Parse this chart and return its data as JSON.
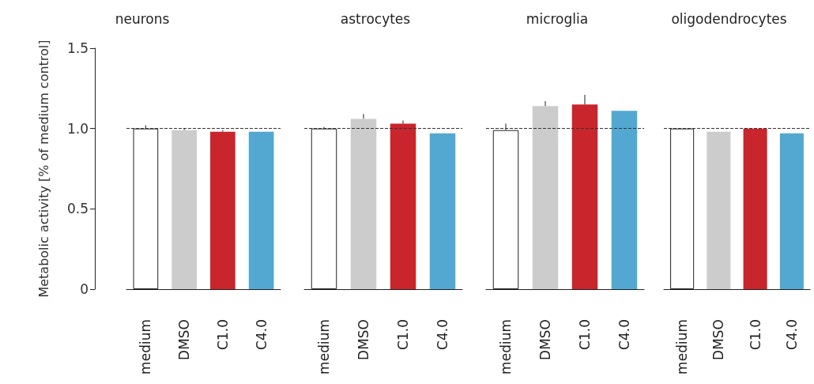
{
  "chart_data": [
    {
      "type": "bar",
      "title": "neurons",
      "ylabel": "Metabolic activity [% of medium control]",
      "categories": [
        "medium",
        "DMSO",
        "C1.0",
        "C4.0"
      ],
      "values": [
        1.0,
        0.99,
        0.98,
        0.98
      ],
      "colors": [
        "#ffffff",
        "#cccccc",
        "#c9252d",
        "#52a8d0"
      ],
      "errors": [
        [
          1.0,
          1.02
        ],
        [
          0.99,
          1.0
        ],
        [
          0.98,
          0.99
        ],
        null
      ],
      "ylim": [
        0,
        1.5
      ],
      "yticks": [
        0,
        {
          "value": 0.5,
          "label": "0.5"
        },
        {
          "value": 1,
          "label": "1.0"
        },
        1.5
      ],
      "ref_lines": [
        {
          "axis": "y",
          "value": 1,
          "label": null,
          "color": "#333333",
          "line_style": "dashed"
        }
      ],
      "grid": false
    },
    {
      "type": "bar",
      "title": "astrocytes",
      "categories": [
        "medium",
        "DMSO",
        "C1.0",
        "C4.0"
      ],
      "values": [
        1.0,
        1.06,
        1.03,
        0.97
      ],
      "colors": [
        "#ffffff",
        "#cccccc",
        "#c9252d",
        "#52a8d0"
      ],
      "errors": [
        [
          1.0,
          1.01
        ],
        [
          1.06,
          1.09
        ],
        [
          1.03,
          1.05
        ],
        null
      ],
      "ylim": [
        0,
        1.5
      ],
      "tick_labels": "x",
      "ref_lines": [
        {
          "axis": "y",
          "value": 1,
          "label": null,
          "color": "#333333",
          "line_style": "dashed"
        }
      ],
      "grid": false
    },
    {
      "type": "bar",
      "title": "microglia",
      "categories": [
        "medium",
        "DMSO",
        "C1.0",
        "C4.0"
      ],
      "values": [
        0.99,
        1.14,
        1.15,
        1.11
      ],
      "colors": [
        "#ffffff",
        "#cccccc",
        "#c9252d",
        "#52a8d0"
      ],
      "errors": [
        [
          0.99,
          1.03
        ],
        [
          1.14,
          1.17
        ],
        [
          1.15,
          1.21
        ],
        null
      ],
      "ylim": [
        0,
        1.5
      ],
      "tick_labels": "x",
      "ref_lines": [
        {
          "axis": "y",
          "value": 1,
          "label": null,
          "color": "#333333",
          "line_style": "dashed"
        }
      ],
      "grid": false
    },
    {
      "type": "bar",
      "title": "oligodendrocytes",
      "categories": [
        "medium",
        "DMSO",
        "C1.0",
        "C4.0"
      ],
      "values": [
        1.0,
        0.98,
        1.0,
        0.97
      ],
      "colors": [
        "#ffffff",
        "#cccccc",
        "#c9252d",
        "#52a8d0"
      ],
      "errors": [
        null,
        null,
        null,
        null
      ],
      "ylim": [
        0,
        1.5
      ],
      "tick_labels": "x",
      "ref_lines": [
        {
          "axis": "y",
          "value": 1,
          "label": null,
          "color": "#333333",
          "line_style": "dashed"
        }
      ],
      "grid": false
    }
  ]
}
